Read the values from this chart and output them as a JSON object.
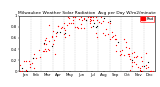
{
  "title": "Milwaukee Weather Solar Radiation  Avg per Day W/m2/minute",
  "title_fontsize": 3.2,
  "background_color": "#ffffff",
  "plot_bg": "#ffffff",
  "xmin": 0,
  "xmax": 365,
  "ymin": 0,
  "ymax": 1.0,
  "ylabel_fontsize": 3.0,
  "xlabel_fontsize": 2.8,
  "yticks": [
    0.0,
    0.2,
    0.4,
    0.6,
    0.8,
    1.0
  ],
  "ytick_labels": [
    "0",
    "0.2",
    "0.4",
    "0.6",
    "0.8",
    "1"
  ],
  "month_boundaries": [
    0,
    31,
    59,
    90,
    120,
    151,
    181,
    212,
    243,
    273,
    304,
    334,
    365
  ],
  "month_labels": [
    "Jan",
    "Feb",
    "Mar",
    "Apr",
    "May",
    "Jun",
    "Jul",
    "Aug",
    "Sep",
    "Oct",
    "Nov",
    "Dec"
  ],
  "legend_label": "Rad",
  "legend_color": "#ff0000",
  "dot_color_main": "#ff0000",
  "dot_color_alt": "#000000",
  "grid_color": "#bbbbbb",
  "grid_style": "--",
  "marker_size": 0.8,
  "figwidth": 1.6,
  "figheight": 0.87,
  "dpi": 100
}
